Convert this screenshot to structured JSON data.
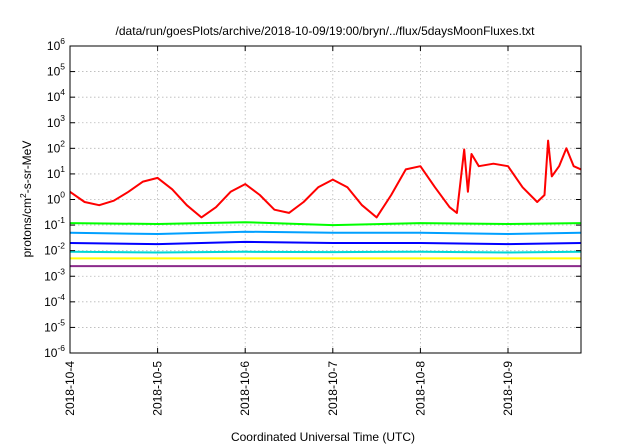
{
  "chart_data": {
    "type": "line",
    "title": "/data/run/goesPlots/archive/2018-10-09/19:00/bryn/../flux/5daysMoonFluxes.txt",
    "xlabel": "Coordinated Universal Time (UTC)",
    "ylabel": {
      "pre": "protons/cm",
      "sup": "2",
      "post": "-s-sr-MeV"
    },
    "y_scale": "log",
    "ylim": [
      1e-06,
      1000000.0
    ],
    "y_ticks": [
      {
        "value": 1e-06,
        "base": "10",
        "exp": "-6"
      },
      {
        "value": 1e-05,
        "base": "10",
        "exp": "-5"
      },
      {
        "value": 0.0001,
        "base": "10",
        "exp": "-4"
      },
      {
        "value": 0.001,
        "base": "10",
        "exp": "-3"
      },
      {
        "value": 0.01,
        "base": "10",
        "exp": "-2"
      },
      {
        "value": 0.1,
        "base": "10",
        "exp": "-1"
      },
      {
        "value": 1.0,
        "base": "10",
        "exp": "0"
      },
      {
        "value": 10.0,
        "base": "10",
        "exp": "1"
      },
      {
        "value": 100.0,
        "base": "10",
        "exp": "2"
      },
      {
        "value": 1000.0,
        "base": "10",
        "exp": "3"
      },
      {
        "value": 10000.0,
        "base": "10",
        "exp": "4"
      },
      {
        "value": 100000.0,
        "base": "10",
        "exp": "5"
      },
      {
        "value": 1000000.0,
        "base": "10",
        "exp": "6"
      }
    ],
    "xlim": [
      "2018-10-04T00:00",
      "2018-10-09T20:00"
    ],
    "x_ticks": [
      "2018-10-4",
      "2018-10-5",
      "2018-10-6",
      "2018-10-7",
      "2018-10-8",
      "2018-10-9"
    ],
    "x_tick_dates": [
      "2018-10-04T00:00",
      "2018-10-05T00:00",
      "2018-10-06T00:00",
      "2018-10-07T00:00",
      "2018-10-08T00:00",
      "2018-10-09T00:00"
    ],
    "grid": true,
    "series": [
      {
        "color": "#ff0000",
        "x": [
          "2018-10-04T00:00",
          "2018-10-04T04:00",
          "2018-10-04T08:00",
          "2018-10-04T12:00",
          "2018-10-04T16:00",
          "2018-10-04T20:00",
          "2018-10-05T00:00",
          "2018-10-05T04:00",
          "2018-10-05T08:00",
          "2018-10-05T12:00",
          "2018-10-05T16:00",
          "2018-10-05T20:00",
          "2018-10-06T00:00",
          "2018-10-06T04:00",
          "2018-10-06T08:00",
          "2018-10-06T12:00",
          "2018-10-06T16:00",
          "2018-10-06T20:00",
          "2018-10-07T00:00",
          "2018-10-07T04:00",
          "2018-10-07T08:00",
          "2018-10-07T12:00",
          "2018-10-07T16:00",
          "2018-10-07T20:00",
          "2018-10-08T00:00",
          "2018-10-08T04:00",
          "2018-10-08T08:00",
          "2018-10-08T10:00",
          "2018-10-08T12:00",
          "2018-10-08T13:00",
          "2018-10-08T14:00",
          "2018-10-08T16:00",
          "2018-10-08T20:00",
          "2018-10-09T00:00",
          "2018-10-09T04:00",
          "2018-10-09T08:00",
          "2018-10-09T10:00",
          "2018-10-09T11:00",
          "2018-10-09T12:00",
          "2018-10-09T14:00",
          "2018-10-09T16:00",
          "2018-10-09T18:00",
          "2018-10-09T20:00"
        ],
        "y": [
          2.0,
          0.8,
          0.6,
          0.9,
          2.0,
          5.0,
          7.0,
          2.5,
          0.6,
          0.2,
          0.5,
          2.0,
          4.0,
          1.5,
          0.4,
          0.3,
          0.8,
          3.0,
          6.0,
          3.0,
          0.6,
          0.2,
          1.5,
          15.0,
          20.0,
          3.0,
          0.5,
          0.3,
          90.0,
          2.0,
          60.0,
          20.0,
          25.0,
          20.0,
          3.0,
          0.8,
          1.5,
          200.0,
          8.0,
          20.0,
          100.0,
          20.0,
          15.0
        ]
      },
      {
        "color": "#00ff00",
        "x": [
          "2018-10-04T00:00",
          "2018-10-05T00:00",
          "2018-10-06T00:00",
          "2018-10-07T00:00",
          "2018-10-08T00:00",
          "2018-10-09T00:00",
          "2018-10-09T20:00"
        ],
        "y": [
          0.12,
          0.11,
          0.13,
          0.1,
          0.12,
          0.11,
          0.12
        ]
      },
      {
        "color": "#00a0ff",
        "x": [
          "2018-10-04T00:00",
          "2018-10-05T00:00",
          "2018-10-06T00:00",
          "2018-10-07T00:00",
          "2018-10-08T00:00",
          "2018-10-09T00:00",
          "2018-10-09T20:00"
        ],
        "y": [
          0.05,
          0.045,
          0.055,
          0.05,
          0.05,
          0.045,
          0.05
        ]
      },
      {
        "color": "#0000ff",
        "x": [
          "2018-10-04T00:00",
          "2018-10-05T00:00",
          "2018-10-06T00:00",
          "2018-10-07T00:00",
          "2018-10-08T00:00",
          "2018-10-09T00:00",
          "2018-10-09T20:00"
        ],
        "y": [
          0.02,
          0.018,
          0.022,
          0.02,
          0.02,
          0.018,
          0.02
        ]
      },
      {
        "color": "#00d8d8",
        "x": [
          "2018-10-04T00:00",
          "2018-10-05T00:00",
          "2018-10-06T00:00",
          "2018-10-07T00:00",
          "2018-10-08T00:00",
          "2018-10-09T00:00",
          "2018-10-09T20:00"
        ],
        "y": [
          0.009,
          0.0085,
          0.009,
          0.0088,
          0.009,
          0.0085,
          0.009
        ]
      },
      {
        "color": "#ffff00",
        "x": [
          "2018-10-04T00:00",
          "2018-10-05T00:00",
          "2018-10-06T00:00",
          "2018-10-07T00:00",
          "2018-10-08T00:00",
          "2018-10-09T00:00",
          "2018-10-09T20:00"
        ],
        "y": [
          0.005,
          0.005,
          0.005,
          0.005,
          0.005,
          0.005,
          0.005
        ]
      },
      {
        "color": "#8b2a8b",
        "x": [
          "2018-10-04T00:00",
          "2018-10-05T00:00",
          "2018-10-06T00:00",
          "2018-10-07T00:00",
          "2018-10-08T00:00",
          "2018-10-09T00:00",
          "2018-10-09T20:00"
        ],
        "y": [
          0.0025,
          0.0025,
          0.0025,
          0.0025,
          0.0025,
          0.0025,
          0.0025
        ]
      }
    ]
  }
}
